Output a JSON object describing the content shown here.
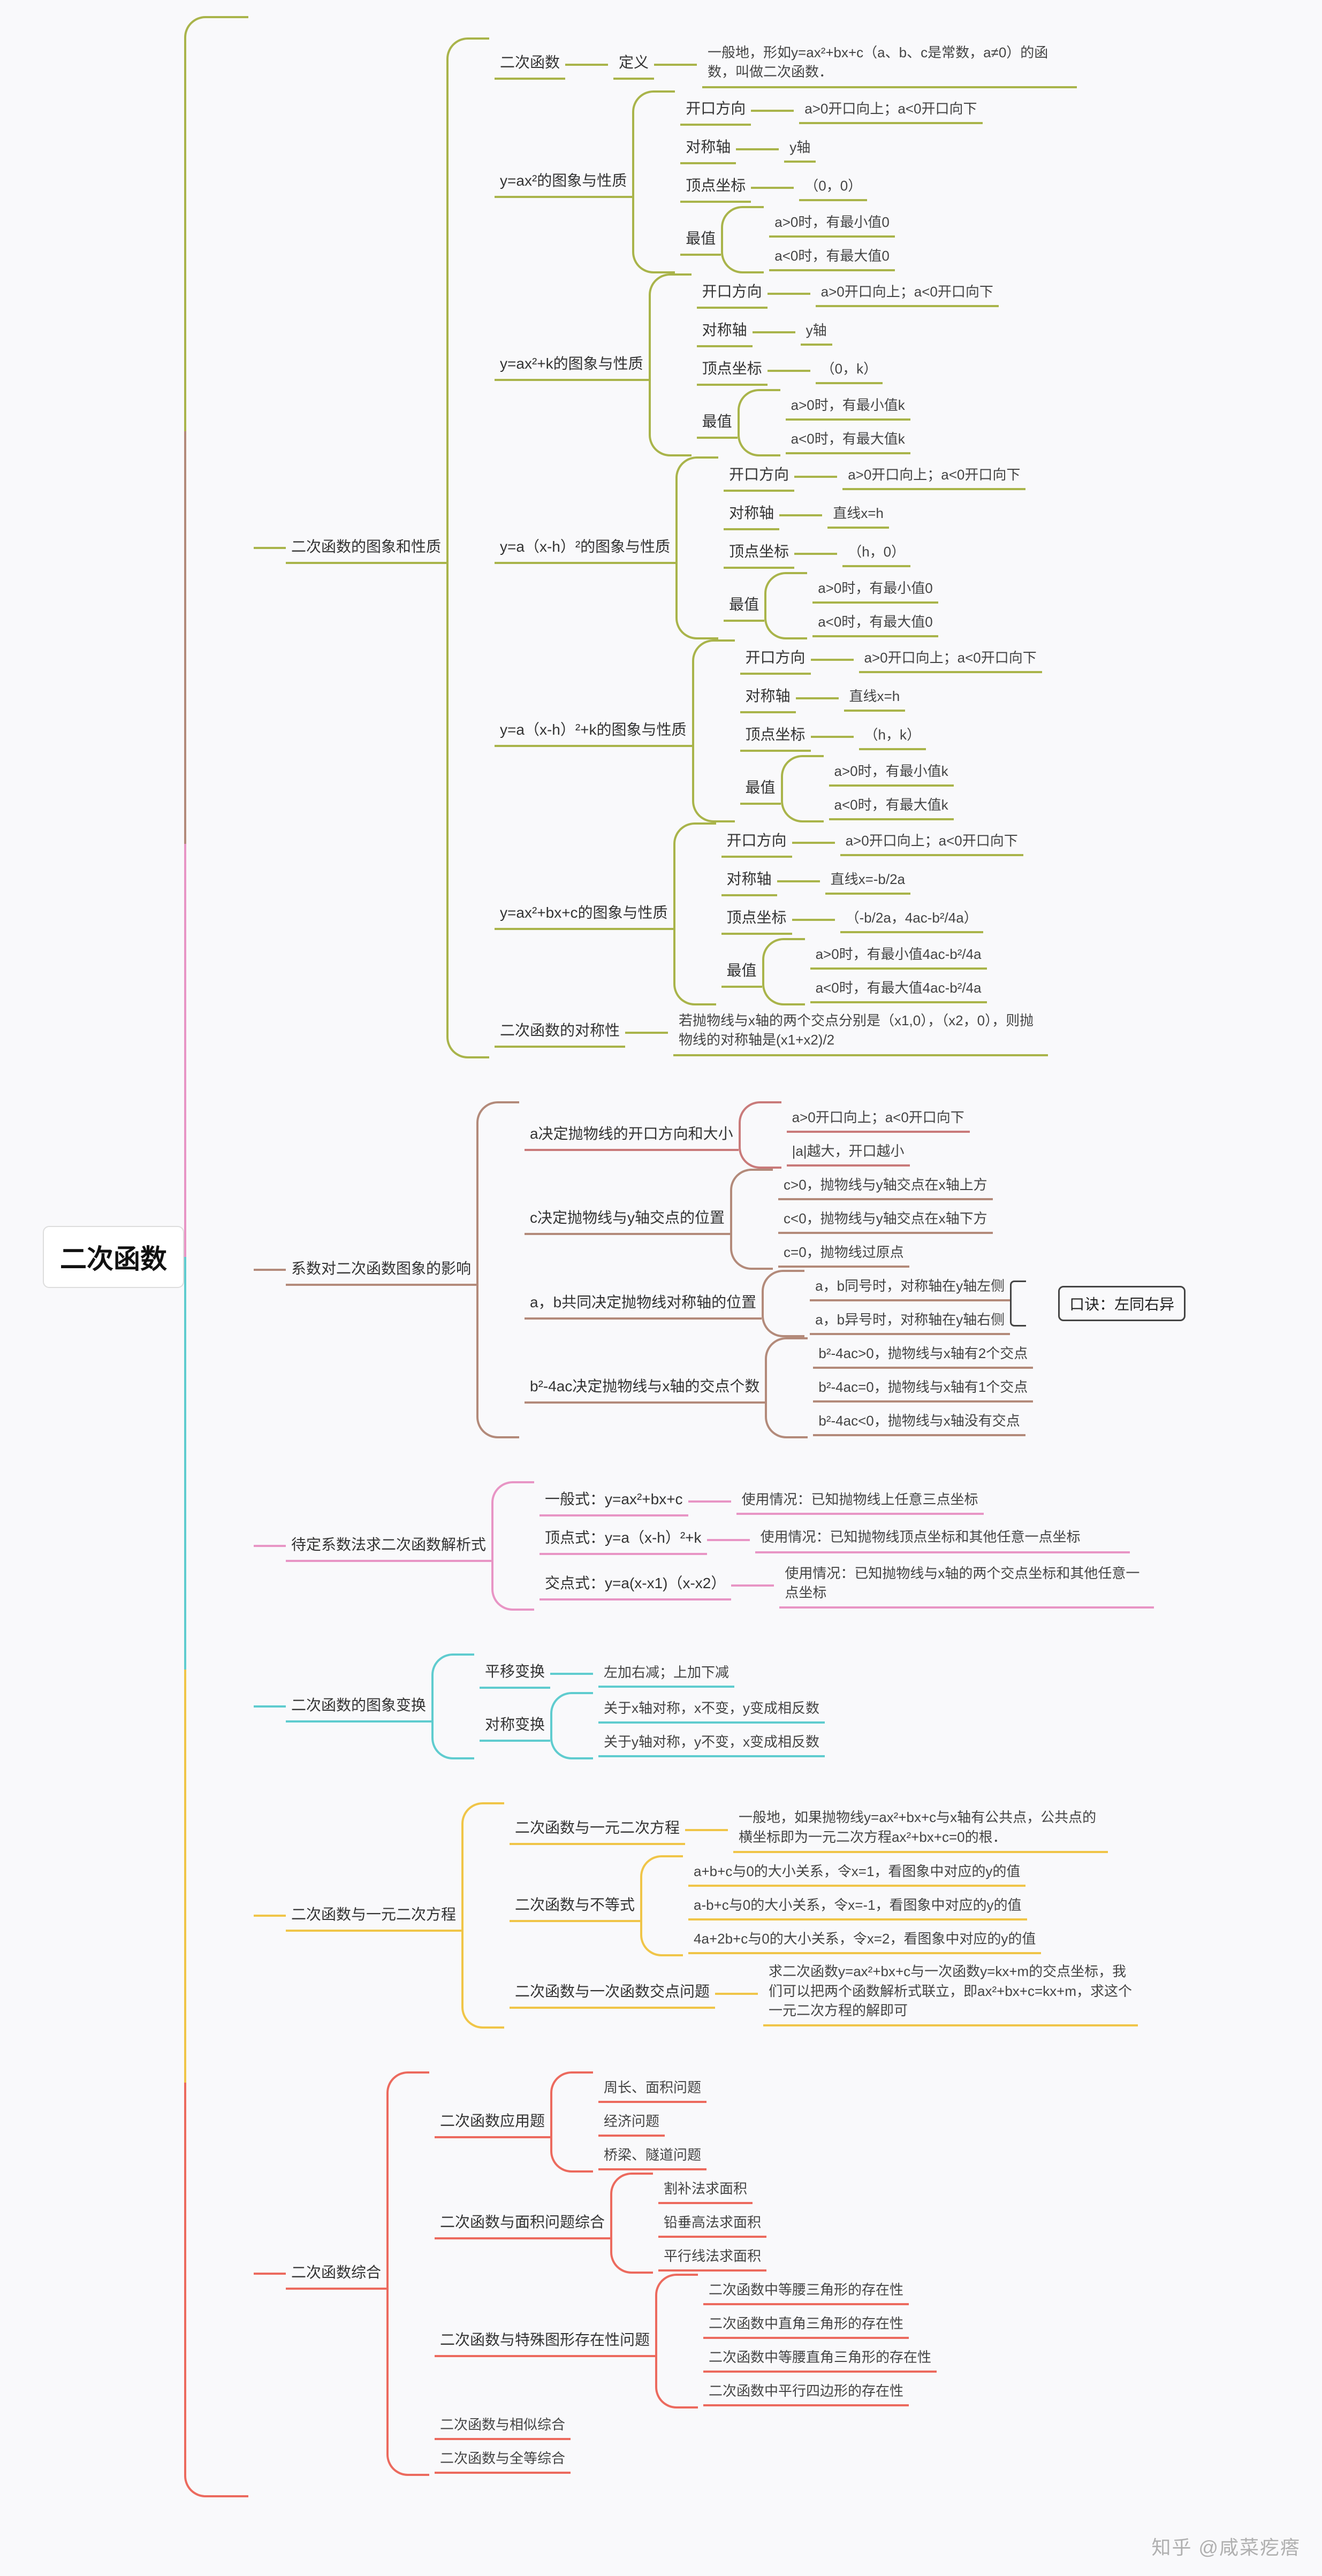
{
  "colors": {
    "l1": [
      "#a9b44a",
      "#b38a7a",
      "#e895c5",
      "#5fcccf",
      "#f0c548",
      "#ec6a5e"
    ],
    "sub_green": "#a9b44a",
    "sub_red": "#c97a7a",
    "sub_brown": "#b38a7a",
    "sub_pink": "#e895c5",
    "sub_teal": "#5fcccf",
    "sub_yellow": "#f0c548",
    "sub_orange": "#ec6a5e"
  },
  "root": "二次函数",
  "watermark": "知乎 @咸菜疙瘩",
  "callout": "口诀：左同右异",
  "tree": [
    {
      "label": "二次函数的图象和性质",
      "color": "#a9b44a",
      "children": [
        {
          "label": "二次函数",
          "color": "#a9b44a",
          "children": [
            {
              "label": "定义",
              "color": "#a9b44a",
              "children": [
                {
                  "label": "一般地，形如y=ax²+bx+c（a、b、c是常数，a≠0）的函数，叫做二次函数．",
                  "color": "#a9b44a",
                  "wrap": true
                }
              ]
            }
          ]
        },
        {
          "label": "y=ax²的图象与性质",
          "color": "#a9b44a",
          "children": [
            {
              "label": "开口方向",
              "color": "#a9b44a",
              "children": [
                {
                  "label": "a>0开口向上；a<0开口向下",
                  "color": "#a9b44a"
                }
              ]
            },
            {
              "label": "对称轴",
              "color": "#a9b44a",
              "children": [
                {
                  "label": "y轴",
                  "color": "#a9b44a"
                }
              ]
            },
            {
              "label": "顶点坐标",
              "color": "#a9b44a",
              "children": [
                {
                  "label": "（0，0）",
                  "color": "#a9b44a"
                }
              ]
            },
            {
              "label": "最值",
              "color": "#a9b44a",
              "children": [
                {
                  "label": "a>0时，有最小值0",
                  "color": "#a9b44a"
                },
                {
                  "label": "a<0时，有最大值0",
                  "color": "#a9b44a"
                }
              ]
            }
          ]
        },
        {
          "label": "y=ax²+k的图象与性质",
          "color": "#a9b44a",
          "children": [
            {
              "label": "开口方向",
              "color": "#a9b44a",
              "children": [
                {
                  "label": "a>0开口向上；a<0开口向下",
                  "color": "#a9b44a"
                }
              ]
            },
            {
              "label": "对称轴",
              "color": "#a9b44a",
              "children": [
                {
                  "label": "y轴",
                  "color": "#a9b44a"
                }
              ]
            },
            {
              "label": "顶点坐标",
              "color": "#a9b44a",
              "children": [
                {
                  "label": "（0，k）",
                  "color": "#a9b44a"
                }
              ]
            },
            {
              "label": "最值",
              "color": "#a9b44a",
              "children": [
                {
                  "label": "a>0时，有最小值k",
                  "color": "#a9b44a"
                },
                {
                  "label": "a<0时，有最大值k",
                  "color": "#a9b44a"
                }
              ]
            }
          ]
        },
        {
          "label": "y=a（x-h）²的图象与性质",
          "color": "#a9b44a",
          "children": [
            {
              "label": "开口方向",
              "color": "#a9b44a",
              "children": [
                {
                  "label": "a>0开口向上；a<0开口向下",
                  "color": "#a9b44a"
                }
              ]
            },
            {
              "label": "对称轴",
              "color": "#a9b44a",
              "children": [
                {
                  "label": "直线x=h",
                  "color": "#a9b44a"
                }
              ]
            },
            {
              "label": "顶点坐标",
              "color": "#a9b44a",
              "children": [
                {
                  "label": "（h，0）",
                  "color": "#a9b44a"
                }
              ]
            },
            {
              "label": "最值",
              "color": "#a9b44a",
              "children": [
                {
                  "label": "a>0时，有最小值0",
                  "color": "#a9b44a"
                },
                {
                  "label": "a<0时，有最大值0",
                  "color": "#a9b44a"
                }
              ]
            }
          ]
        },
        {
          "label": "y=a（x-h）²+k的图象与性质",
          "color": "#a9b44a",
          "children": [
            {
              "label": "开口方向",
              "color": "#a9b44a",
              "children": [
                {
                  "label": "a>0开口向上；a<0开口向下",
                  "color": "#a9b44a"
                }
              ]
            },
            {
              "label": "对称轴",
              "color": "#a9b44a",
              "children": [
                {
                  "label": "直线x=h",
                  "color": "#a9b44a"
                }
              ]
            },
            {
              "label": "顶点坐标",
              "color": "#a9b44a",
              "children": [
                {
                  "label": "（h，k）",
                  "color": "#a9b44a"
                }
              ]
            },
            {
              "label": "最值",
              "color": "#a9b44a",
              "children": [
                {
                  "label": "a>0时，有最小值k",
                  "color": "#a9b44a"
                },
                {
                  "label": "a<0时，有最大值k",
                  "color": "#a9b44a"
                }
              ]
            }
          ]
        },
        {
          "label": "y=ax²+bx+c的图象与性质",
          "color": "#a9b44a",
          "children": [
            {
              "label": "开口方向",
              "color": "#a9b44a",
              "children": [
                {
                  "label": "a>0开口向上；a<0开口向下",
                  "color": "#a9b44a"
                }
              ]
            },
            {
              "label": "对称轴",
              "color": "#a9b44a",
              "children": [
                {
                  "label": "直线x=-b/2a",
                  "color": "#a9b44a"
                }
              ]
            },
            {
              "label": "顶点坐标",
              "color": "#a9b44a",
              "children": [
                {
                  "label": "（-b/2a，4ac-b²/4a）",
                  "color": "#a9b44a"
                }
              ]
            },
            {
              "label": "最值",
              "color": "#a9b44a",
              "children": [
                {
                  "label": "a>0时，有最小值4ac-b²/4a",
                  "color": "#a9b44a"
                },
                {
                  "label": "a<0时，有最大值4ac-b²/4a",
                  "color": "#a9b44a"
                }
              ]
            }
          ]
        },
        {
          "label": "二次函数的对称性",
          "color": "#a9b44a",
          "children": [
            {
              "label": "若抛物线与x轴的两个交点分别是（x1,0），（x2，0），则抛物线的对称轴是(x1+x2)/2",
              "color": "#a9b44a",
              "wrap": true
            }
          ]
        }
      ]
    },
    {
      "label": "系数对二次函数图象的影响",
      "color": "#b38a7a",
      "children": [
        {
          "label": "a决定抛物线的开口方向和大小",
          "color": "#c97a7a",
          "children": [
            {
              "label": "a>0开口向上；a<0开口向下",
              "color": "#c97a7a"
            },
            {
              "label": "|a|越大，开口越小",
              "color": "#c97a7a"
            }
          ]
        },
        {
          "label": "c决定抛物线与y轴交点的位置",
          "color": "#b38a7a",
          "children": [
            {
              "label": "c>0，抛物线与y轴交点在x轴上方",
              "color": "#b38a7a"
            },
            {
              "label": "c<0，抛物线与y轴交点在x轴下方",
              "color": "#b38a7a"
            },
            {
              "label": "c=0，抛物线过原点",
              "color": "#b38a7a"
            }
          ]
        },
        {
          "label": "a，b共同决定抛物线对称轴的位置",
          "color": "#b38a7a",
          "children": [
            {
              "label": "a，b同号时，对称轴在y轴左侧",
              "color": "#b38a7a"
            },
            {
              "label": "a，b异号时，对称轴在y轴右侧",
              "color": "#b38a7a"
            }
          ],
          "callout": true
        },
        {
          "label": "b²-4ac决定抛物线与x轴的交点个数",
          "color": "#b38a7a",
          "children": [
            {
              "label": "b²-4ac>0，抛物线与x轴有2个交点",
              "color": "#b38a7a"
            },
            {
              "label": "b²-4ac=0，抛物线与x轴有1个交点",
              "color": "#b38a7a"
            },
            {
              "label": "b²-4ac<0，抛物线与x轴没有交点",
              "color": "#b38a7a"
            }
          ]
        }
      ]
    },
    {
      "label": "待定系数法求二次函数解析式",
      "color": "#e895c5",
      "children": [
        {
          "label": "一般式：y=ax²+bx+c",
          "color": "#e895c5",
          "children": [
            {
              "label": "使用情况：已知抛物线上任意三点坐标",
              "color": "#e895c5"
            }
          ]
        },
        {
          "label": "顶点式：y=a（x-h）²+k",
          "color": "#e895c5",
          "children": [
            {
              "label": "使用情况：已知抛物线顶点坐标和其他任意一点坐标",
              "color": "#e895c5",
              "wrap": true
            }
          ]
        },
        {
          "label": "交点式：y=a(x-x1)（x-x2）",
          "color": "#e895c5",
          "children": [
            {
              "label": "使用情况：已知抛物线与x轴的两个交点坐标和其他任意一点坐标",
              "color": "#e895c5",
              "wrap": true
            }
          ]
        }
      ]
    },
    {
      "label": "二次函数的图象变换",
      "color": "#5fcccf",
      "children": [
        {
          "label": "平移变换",
          "color": "#5fcccf",
          "children": [
            {
              "label": "左加右减；上加下减",
              "color": "#5fcccf"
            }
          ]
        },
        {
          "label": "对称变换",
          "color": "#5fcccf",
          "children": [
            {
              "label": "关于x轴对称，x不变，y变成相反数",
              "color": "#5fcccf"
            },
            {
              "label": "关于y轴对称，y不变，x变成相反数",
              "color": "#5fcccf"
            }
          ]
        }
      ]
    },
    {
      "label": "二次函数与一元二次方程",
      "color": "#f0c548",
      "children": [
        {
          "label": "二次函数与一元二次方程",
          "color": "#f0c548",
          "children": [
            {
              "label": "一般地，如果抛物线y=ax²+bx+c与x轴有公共点，公共点的横坐标即为一元二次方程ax²+bx+c=0的根．",
              "color": "#f0c548",
              "wrap": true
            }
          ]
        },
        {
          "label": "二次函数与不等式",
          "color": "#f0c548",
          "children": [
            {
              "label": "a+b+c与0的大小关系，令x=1，看图象中对应的y的值",
              "color": "#f0c548"
            },
            {
              "label": "a-b+c与0的大小关系，令x=-1，看图象中对应的y的值",
              "color": "#f0c548"
            },
            {
              "label": "4a+2b+c与0的大小关系，令x=2，看图象中对应的y的值",
              "color": "#f0c548"
            }
          ]
        },
        {
          "label": "二次函数与一次函数交点问题",
          "color": "#f0c548",
          "children": [
            {
              "label": "求二次函数y=ax²+bx+c与一次函数y=kx+m的交点坐标，我们可以把两个函数解析式联立，即ax²+bx+c=kx+m，求这个一元二次方程的解即可",
              "color": "#f0c548",
              "wrap": true
            }
          ]
        }
      ]
    },
    {
      "label": "二次函数综合",
      "color": "#ec6a5e",
      "children": [
        {
          "label": "二次函数应用题",
          "color": "#ec6a5e",
          "children": [
            {
              "label": "周长、面积问题",
              "color": "#ec6a5e"
            },
            {
              "label": "经济问题",
              "color": "#ec6a5e"
            },
            {
              "label": "桥梁、隧道问题",
              "color": "#ec6a5e"
            }
          ]
        },
        {
          "label": "二次函数与面积问题综合",
          "color": "#ec6a5e",
          "children": [
            {
              "label": "割补法求面积",
              "color": "#ec6a5e"
            },
            {
              "label": "铅垂高法求面积",
              "color": "#ec6a5e"
            },
            {
              "label": "平行线法求面积",
              "color": "#ec6a5e"
            }
          ]
        },
        {
          "label": "二次函数与特殊图形存在性问题",
          "color": "#ec6a5e",
          "children": [
            {
              "label": "二次函数中等腰三角形的存在性",
              "color": "#ec6a5e"
            },
            {
              "label": "二次函数中直角三角形的存在性",
              "color": "#ec6a5e"
            },
            {
              "label": "二次函数中等腰直角三角形的存在性",
              "color": "#ec6a5e"
            },
            {
              "label": "二次函数中平行四边形的存在性",
              "color": "#ec6a5e"
            }
          ]
        },
        {
          "label": "二次函数与相似综合",
          "color": "#ec6a5e"
        },
        {
          "label": "二次函数与全等综合",
          "color": "#ec6a5e"
        }
      ]
    }
  ]
}
